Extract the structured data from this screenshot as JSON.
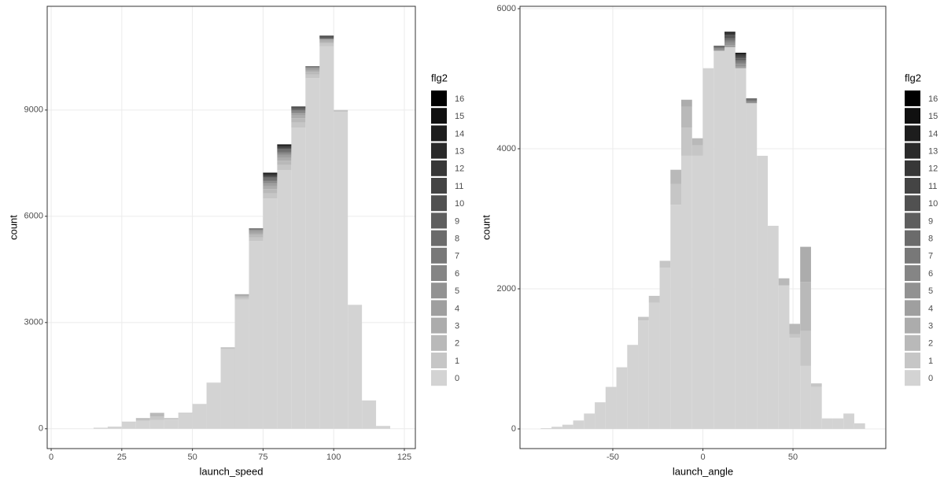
{
  "chart_data": [
    {
      "type": "histogram",
      "stacked": true,
      "x_label": "launch_speed",
      "y_label": "count",
      "legend_title": "flg2",
      "xlim": [
        -1.4,
        128.9
      ],
      "xticks": [
        0,
        25,
        50,
        75,
        100,
        125
      ],
      "ylim": [
        -560,
        11930
      ],
      "yticks": [
        0,
        3000,
        6000,
        9000
      ],
      "grid": true,
      "bins": [
        15,
        20,
        25,
        30,
        35,
        40,
        45,
        50,
        55,
        60,
        65,
        70,
        75,
        80,
        85,
        90,
        95,
        100,
        105,
        110,
        115,
        120
      ],
      "series": [
        {
          "name": "0",
          "color": "#d3d3d3",
          "values": [
            30,
            60,
            180,
            220,
            250,
            260,
            430,
            690,
            1280,
            2250,
            3650,
            5300,
            6500,
            7300,
            8500,
            9900,
            10800,
            8950,
            3500,
            800,
            80
          ]
        },
        {
          "name": "1",
          "color": "#c6c6c6",
          "values": [
            0,
            0,
            10,
            40,
            100,
            20,
            10,
            5,
            10,
            20,
            50,
            100,
            150,
            150,
            150,
            100,
            80,
            30,
            0,
            0,
            0
          ]
        },
        {
          "name": "2",
          "color": "#b9b9b9",
          "values": [
            0,
            0,
            10,
            40,
            100,
            20,
            10,
            5,
            10,
            20,
            50,
            80,
            120,
            120,
            120,
            80,
            50,
            20,
            0,
            0,
            0
          ]
        },
        {
          "name": "3",
          "color": "#acacac",
          "values": [
            0,
            0,
            0,
            0,
            0,
            0,
            0,
            0,
            0,
            10,
            30,
            60,
            80,
            80,
            80,
            50,
            30,
            0,
            0,
            0,
            0
          ]
        },
        {
          "name": "4",
          "color": "#9f9f9f",
          "values": [
            0,
            0,
            0,
            0,
            0,
            0,
            0,
            0,
            0,
            0,
            20,
            40,
            60,
            60,
            50,
            30,
            20,
            0,
            0,
            0,
            0
          ]
        },
        {
          "name": "5",
          "color": "#929292",
          "values": [
            0,
            0,
            0,
            0,
            0,
            0,
            0,
            0,
            0,
            0,
            0,
            20,
            40,
            40,
            30,
            20,
            10,
            0,
            0,
            0,
            0
          ]
        },
        {
          "name": "6",
          "color": "#858585",
          "values": [
            0,
            0,
            0,
            0,
            0,
            0,
            0,
            0,
            0,
            0,
            0,
            20,
            40,
            40,
            30,
            20,
            10,
            0,
            0,
            0,
            0
          ]
        },
        {
          "name": "7",
          "color": "#787878",
          "values": [
            0,
            0,
            0,
            0,
            0,
            0,
            0,
            0,
            0,
            0,
            0,
            20,
            40,
            40,
            30,
            20,
            10,
            0,
            0,
            0,
            0
          ]
        },
        {
          "name": "8",
          "color": "#6b6b6b",
          "values": [
            0,
            0,
            0,
            0,
            0,
            0,
            0,
            0,
            0,
            0,
            0,
            20,
            40,
            40,
            30,
            20,
            10,
            0,
            0,
            0,
            0
          ]
        },
        {
          "name": "9",
          "color": "#5e5e5e",
          "values": [
            0,
            0,
            0,
            0,
            0,
            0,
            0,
            0,
            0,
            0,
            0,
            0,
            20,
            20,
            10,
            0,
            10,
            0,
            0,
            0,
            0
          ]
        },
        {
          "name": "10",
          "color": "#515151",
          "values": [
            0,
            0,
            0,
            0,
            0,
            0,
            0,
            0,
            0,
            0,
            0,
            0,
            20,
            20,
            10,
            0,
            10,
            0,
            0,
            0,
            0
          ]
        },
        {
          "name": "11",
          "color": "#444444",
          "values": [
            0,
            0,
            0,
            0,
            0,
            0,
            0,
            0,
            0,
            0,
            0,
            0,
            20,
            20,
            10,
            0,
            10,
            0,
            0,
            0,
            0
          ]
        },
        {
          "name": "12",
          "color": "#373737",
          "values": [
            0,
            0,
            0,
            0,
            0,
            0,
            0,
            0,
            0,
            0,
            0,
            0,
            20,
            20,
            10,
            0,
            10,
            0,
            0,
            0,
            0
          ]
        },
        {
          "name": "13",
          "color": "#2a2a2a",
          "values": [
            0,
            0,
            0,
            0,
            0,
            0,
            0,
            0,
            0,
            0,
            0,
            0,
            20,
            20,
            10,
            0,
            10,
            0,
            0,
            0,
            0
          ]
        },
        {
          "name": "14",
          "color": "#1d1d1d",
          "values": [
            0,
            0,
            0,
            0,
            0,
            0,
            0,
            0,
            0,
            0,
            0,
            0,
            20,
            20,
            10,
            0,
            10,
            0,
            0,
            0,
            0
          ]
        },
        {
          "name": "15",
          "color": "#101010",
          "values": [
            0,
            0,
            0,
            0,
            0,
            0,
            0,
            0,
            0,
            0,
            0,
            0,
            20,
            20,
            10,
            0,
            10,
            0,
            0,
            0,
            0
          ]
        },
        {
          "name": "16",
          "color": "#000000",
          "values": [
            0,
            0,
            0,
            0,
            0,
            0,
            0,
            0,
            0,
            0,
            0,
            0,
            20,
            20,
            10,
            0,
            10,
            0,
            0,
            0,
            0
          ]
        }
      ]
    },
    {
      "type": "histogram",
      "stacked": true,
      "x_label": "launch_angle",
      "y_label": "count",
      "legend_title": "flg2",
      "xlim": [
        -101.5,
        101.5
      ],
      "xticks": [
        -50,
        0,
        50
      ],
      "ylim": [
        -281,
        6034
      ],
      "yticks": [
        0,
        2000,
        4000,
        6000
      ],
      "grid": true,
      "bins": [
        -90,
        -84,
        -78,
        -72,
        -66,
        -60,
        -54,
        -48,
        -42,
        -36,
        -30,
        -24,
        -18,
        -12,
        -6,
        0,
        6,
        12,
        18,
        24,
        30,
        36,
        42,
        48,
        54,
        60,
        66,
        72,
        78,
        84,
        90
      ],
      "series": [
        {
          "name": "0",
          "color": "#d3d3d3",
          "values": [
            10,
            30,
            60,
            120,
            220,
            380,
            600,
            880,
            1200,
            1550,
            1800,
            2300,
            3200,
            3900,
            3900,
            5150,
            5400,
            5450,
            5150,
            4650,
            3900,
            2900,
            2050,
            1300,
            900,
            600,
            150,
            150,
            220,
            80
          ]
        },
        {
          "name": "1",
          "color": "#c6c6c6",
          "values": [
            0,
            0,
            0,
            0,
            0,
            0,
            0,
            0,
            0,
            50,
            100,
            100,
            300,
            400,
            150,
            0,
            0,
            0,
            0,
            0,
            0,
            0,
            0,
            50,
            500,
            50,
            0,
            0,
            0,
            0
          ]
        },
        {
          "name": "2",
          "color": "#b9b9b9",
          "values": [
            0,
            0,
            0,
            0,
            0,
            0,
            0,
            0,
            0,
            0,
            0,
            0,
            200,
            300,
            100,
            0,
            0,
            0,
            0,
            0,
            0,
            0,
            100,
            150,
            700,
            0,
            0,
            0,
            0,
            0
          ]
        },
        {
          "name": "3",
          "color": "#acacac",
          "values": [
            0,
            0,
            0,
            0,
            0,
            0,
            0,
            0,
            0,
            0,
            0,
            0,
            0,
            100,
            0,
            0,
            0,
            0,
            0,
            0,
            0,
            0,
            0,
            0,
            500,
            0,
            0,
            0,
            0,
            0
          ]
        },
        {
          "name": "4",
          "color": "#9f9f9f",
          "values": [
            0,
            0,
            0,
            0,
            0,
            0,
            0,
            0,
            0,
            0,
            0,
            0,
            0,
            0,
            0,
            0,
            0,
            30,
            30,
            0,
            0,
            0,
            0,
            0,
            0,
            0,
            0,
            0,
            0,
            0
          ]
        },
        {
          "name": "5",
          "color": "#929292",
          "values": [
            0,
            0,
            0,
            0,
            0,
            0,
            0,
            0,
            0,
            0,
            0,
            0,
            0,
            0,
            0,
            0,
            20,
            30,
            30,
            20,
            0,
            0,
            0,
            0,
            0,
            0,
            0,
            0,
            0,
            0
          ]
        },
        {
          "name": "6",
          "color": "#858585",
          "values": [
            0,
            0,
            0,
            0,
            0,
            0,
            0,
            0,
            0,
            0,
            0,
            0,
            0,
            0,
            0,
            0,
            10,
            20,
            20,
            10,
            0,
            0,
            0,
            0,
            0,
            0,
            0,
            0,
            0,
            0
          ]
        },
        {
          "name": "7",
          "color": "#787878",
          "values": [
            0,
            0,
            0,
            0,
            0,
            0,
            0,
            0,
            0,
            0,
            0,
            0,
            0,
            0,
            0,
            0,
            10,
            20,
            20,
            10,
            0,
            0,
            0,
            0,
            0,
            0,
            0,
            0,
            0,
            0
          ]
        },
        {
          "name": "8",
          "color": "#6b6b6b",
          "values": [
            0,
            0,
            0,
            0,
            0,
            0,
            0,
            0,
            0,
            0,
            0,
            0,
            0,
            0,
            0,
            0,
            10,
            20,
            20,
            10,
            0,
            0,
            0,
            0,
            0,
            0,
            0,
            0,
            0,
            0
          ]
        },
        {
          "name": "9",
          "color": "#5e5e5e",
          "values": [
            0,
            0,
            0,
            0,
            0,
            0,
            0,
            0,
            0,
            0,
            0,
            0,
            0,
            0,
            0,
            0,
            10,
            20,
            20,
            10,
            0,
            0,
            0,
            0,
            0,
            0,
            0,
            0,
            0,
            0
          ]
        },
        {
          "name": "10",
          "color": "#515151",
          "values": [
            0,
            0,
            0,
            0,
            0,
            0,
            0,
            0,
            0,
            0,
            0,
            0,
            0,
            0,
            0,
            0,
            10,
            20,
            20,
            10,
            0,
            0,
            0,
            0,
            0,
            0,
            0,
            0,
            0,
            0
          ]
        },
        {
          "name": "11",
          "color": "#444444",
          "values": [
            0,
            0,
            0,
            0,
            0,
            0,
            0,
            0,
            0,
            0,
            0,
            0,
            0,
            0,
            0,
            0,
            0,
            10,
            10,
            0,
            0,
            0,
            0,
            0,
            0,
            0,
            0,
            0,
            0,
            0
          ]
        },
        {
          "name": "12",
          "color": "#373737",
          "values": [
            0,
            0,
            0,
            0,
            0,
            0,
            0,
            0,
            0,
            0,
            0,
            0,
            0,
            0,
            0,
            0,
            0,
            10,
            10,
            0,
            0,
            0,
            0,
            0,
            0,
            0,
            0,
            0,
            0,
            0
          ]
        },
        {
          "name": "13",
          "color": "#2a2a2a",
          "values": [
            0,
            0,
            0,
            0,
            0,
            0,
            0,
            0,
            0,
            0,
            0,
            0,
            0,
            0,
            0,
            0,
            0,
            10,
            10,
            0,
            0,
            0,
            0,
            0,
            0,
            0,
            0,
            0,
            0,
            0
          ]
        },
        {
          "name": "14",
          "color": "#1d1d1d",
          "values": [
            0,
            0,
            0,
            0,
            0,
            0,
            0,
            0,
            0,
            0,
            0,
            0,
            0,
            0,
            0,
            0,
            0,
            10,
            10,
            0,
            0,
            0,
            0,
            0,
            0,
            0,
            0,
            0,
            0,
            0
          ]
        },
        {
          "name": "15",
          "color": "#101010",
          "values": [
            0,
            0,
            0,
            0,
            0,
            0,
            0,
            0,
            0,
            0,
            0,
            0,
            0,
            0,
            0,
            0,
            0,
            10,
            10,
            0,
            0,
            0,
            0,
            0,
            0,
            0,
            0,
            0,
            0,
            0
          ]
        },
        {
          "name": "16",
          "color": "#000000",
          "values": [
            0,
            0,
            0,
            0,
            0,
            0,
            0,
            0,
            0,
            0,
            0,
            0,
            0,
            0,
            0,
            0,
            0,
            10,
            10,
            0,
            0,
            0,
            0,
            0,
            0,
            0,
            0,
            0,
            0,
            0
          ]
        }
      ]
    }
  ]
}
